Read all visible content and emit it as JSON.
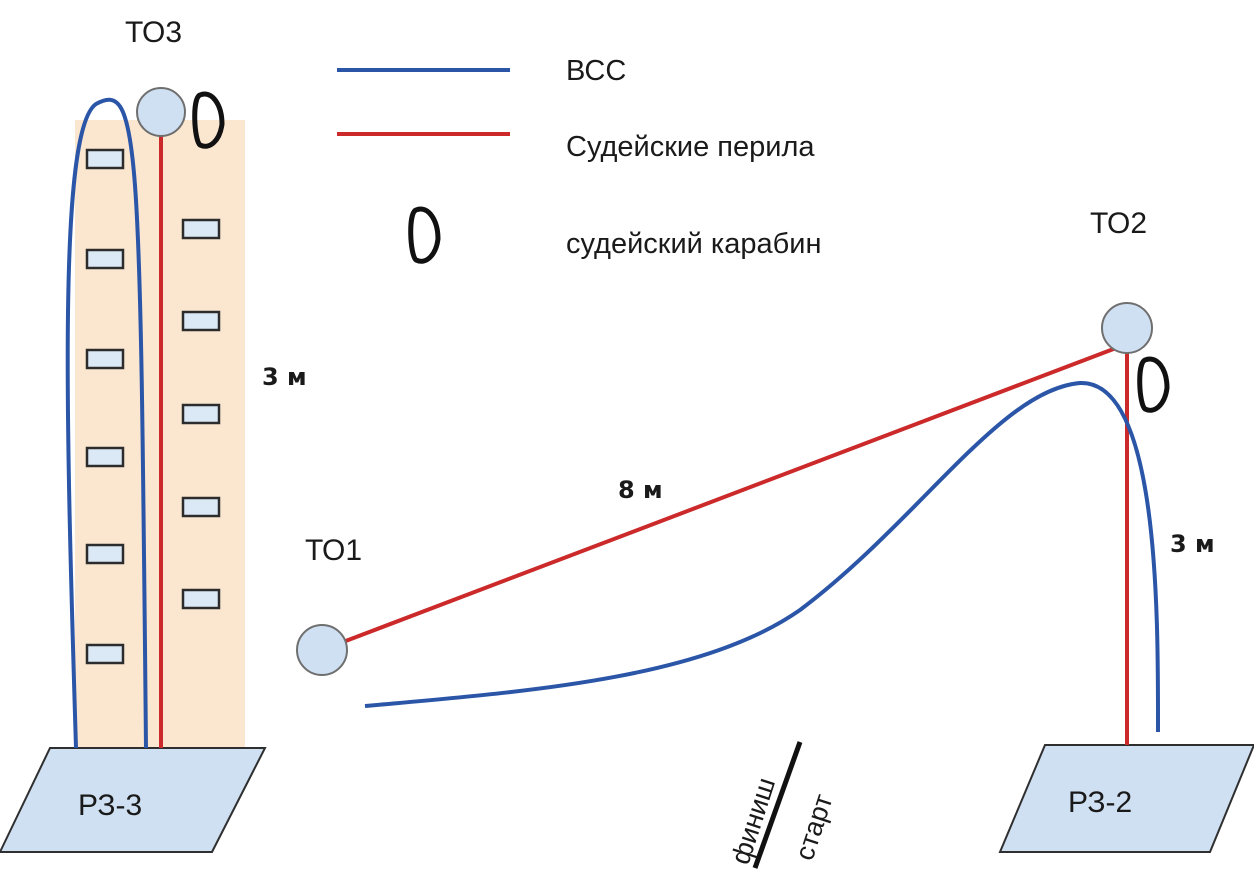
{
  "legend": {
    "vss_label": "ВСС",
    "rail_label": "Судейские перила",
    "carabiner_label": "судейский карабин"
  },
  "points": {
    "to1": "ТО1",
    "to2": "ТО2",
    "to3": "ТО3"
  },
  "zones": {
    "rz3": "РЗ-3",
    "rz2": "РЗ-2"
  },
  "distances": {
    "wall_height": "3 м",
    "traverse_length": "8 м",
    "descent_height": "3 м"
  },
  "finish_start": {
    "finish": "финиш",
    "start": "старт"
  },
  "colors": {
    "vss": "#2b56a8",
    "rail": "#cc2a2a",
    "wall": "#fbe6d0"
  },
  "icons": {
    "carabiner": "carabiner-icon",
    "node": "anchor-point-icon"
  }
}
